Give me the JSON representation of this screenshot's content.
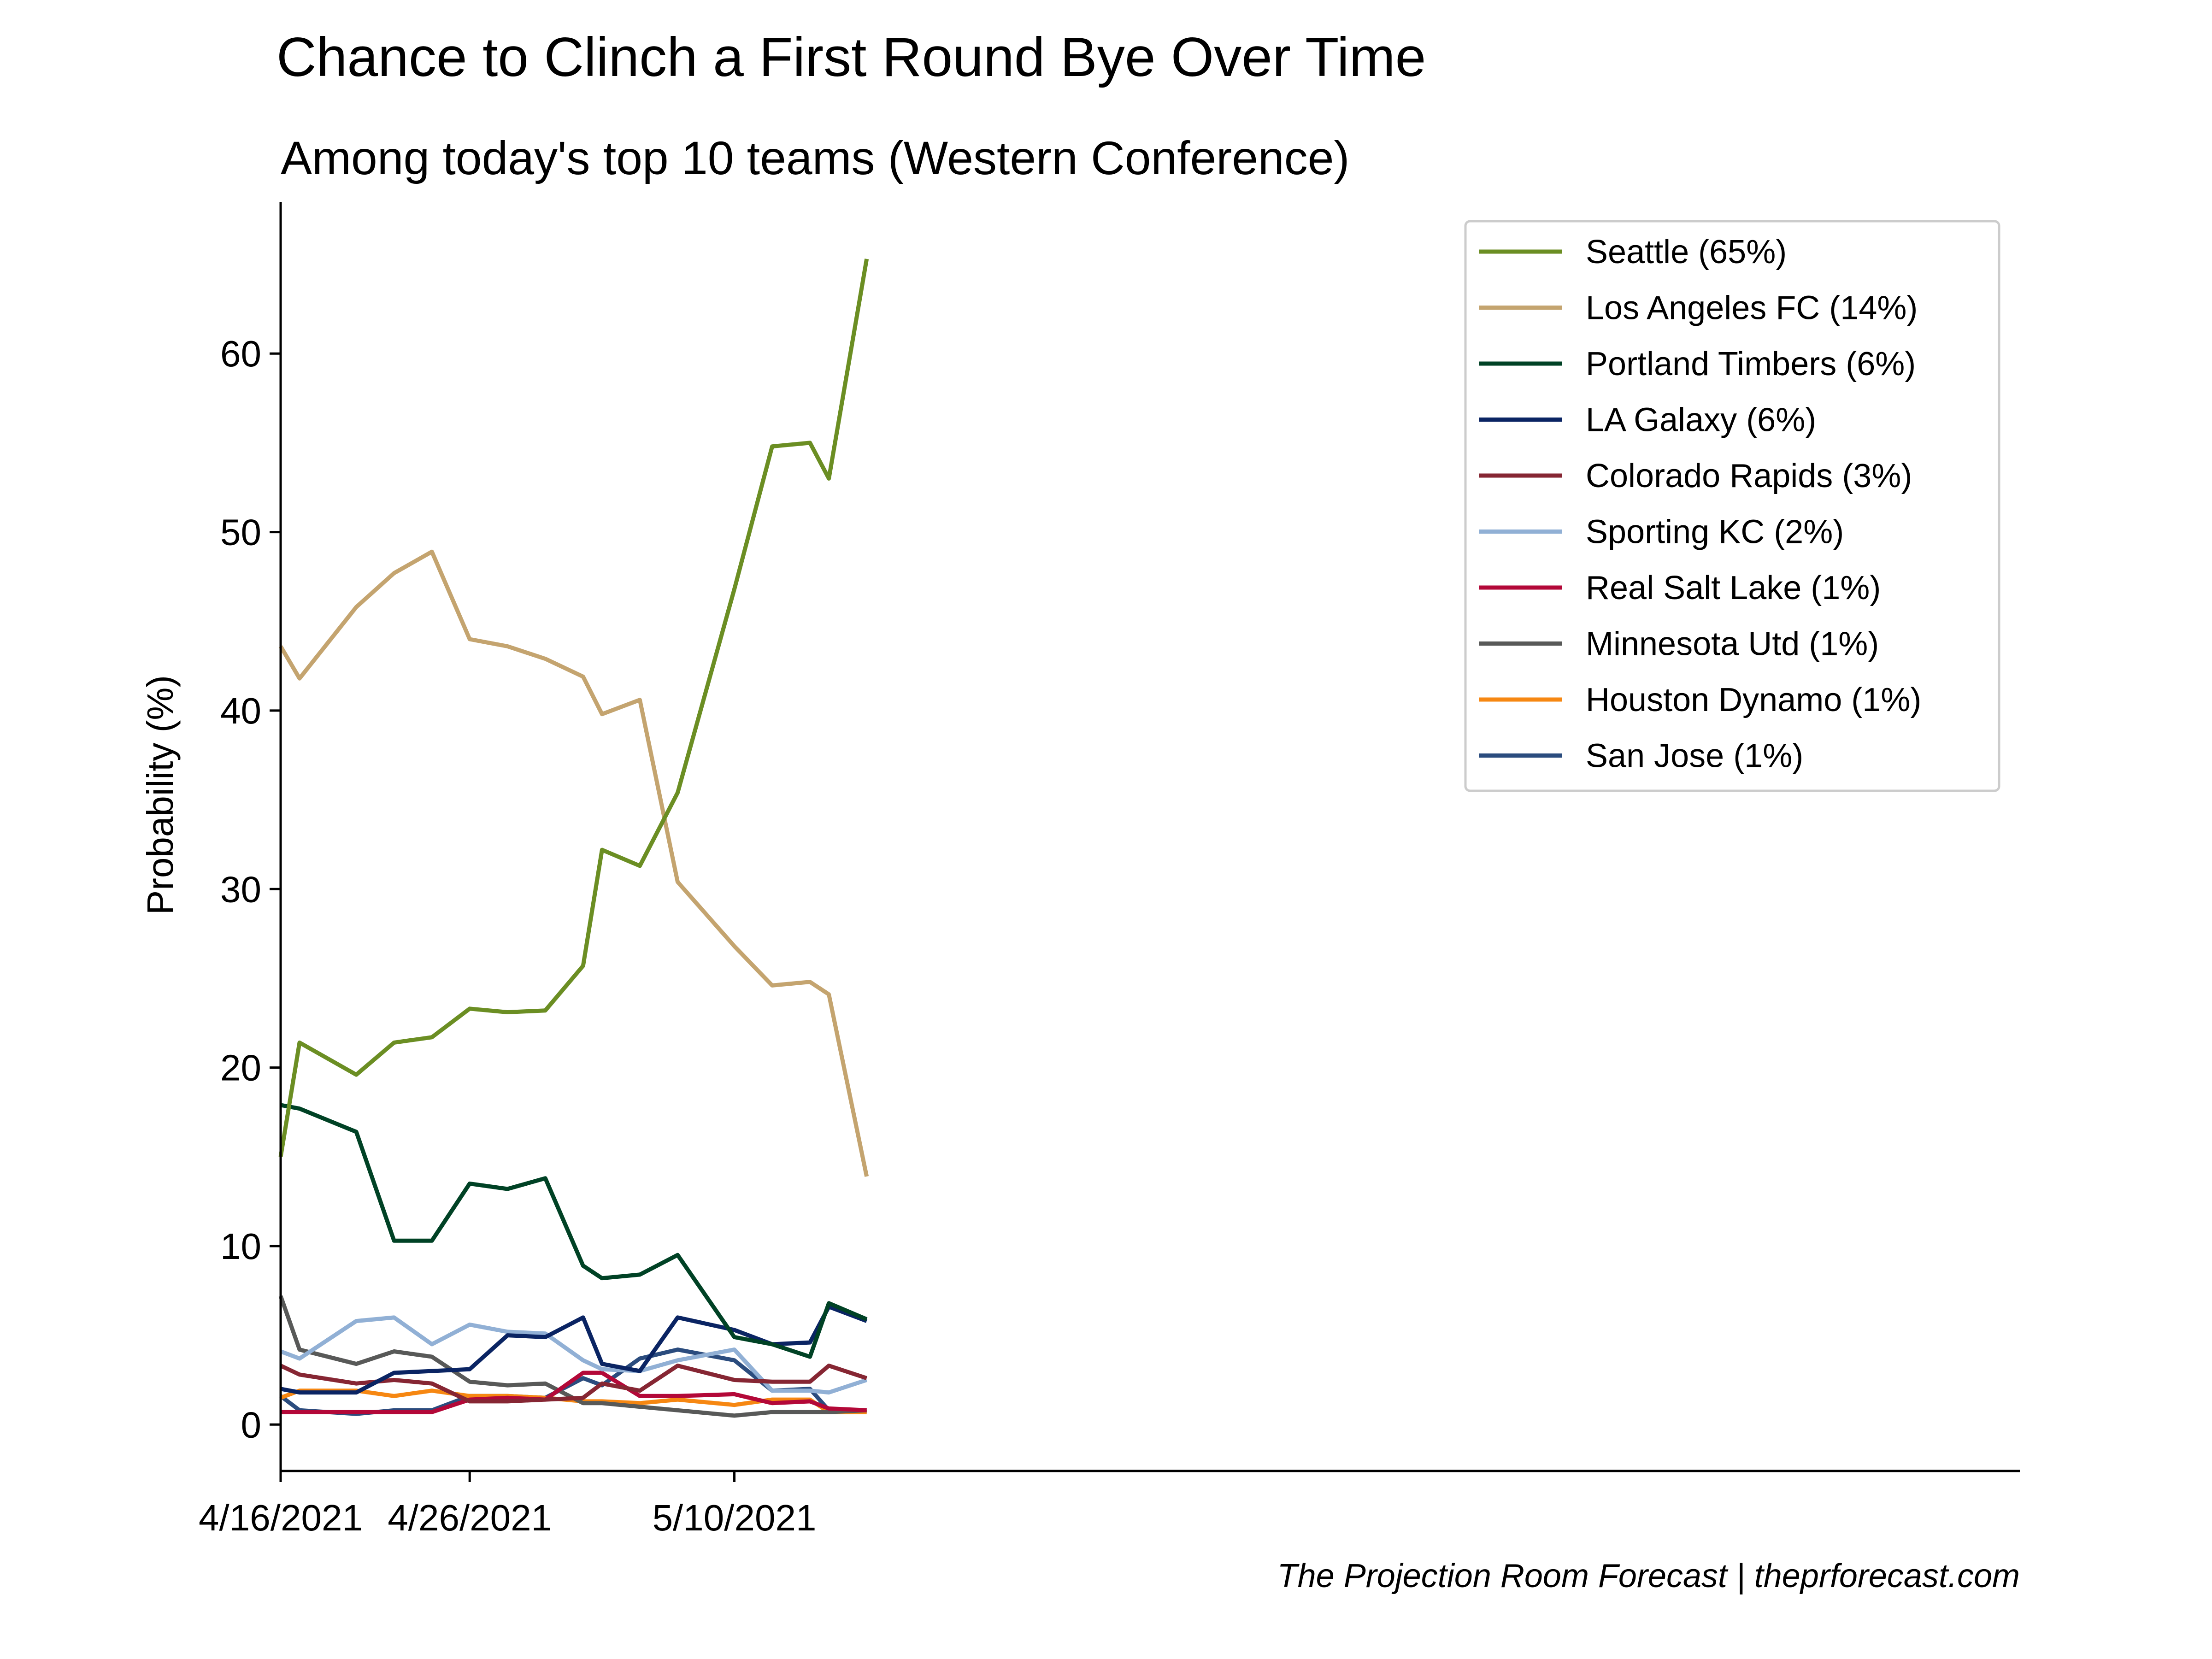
{
  "chart_data": {
    "type": "line",
    "title": "Chance to Clinch a First Round Bye Over Time",
    "subtitle": "Among today's top 10 teams (Western Conference)",
    "xlabel": "",
    "ylabel": "Probability (%)",
    "x_ticks": [
      "4/16/2021",
      "4/26/2021",
      "5/10/2021"
    ],
    "x_axis": {
      "min": "4/16/2021",
      "max": "7/17/2021"
    },
    "y_ticks": [
      0,
      10,
      20,
      30,
      40,
      50,
      60
    ],
    "ylim": [
      -2.6,
      68.5
    ],
    "grid": false,
    "legend_position": "top-right",
    "x": [
      "4/16/2021",
      "4/17/2021",
      "4/20/2021",
      "4/22/2021",
      "4/24/2021",
      "4/26/2021",
      "4/28/2021",
      "4/30/2021",
      "5/2/2021",
      "5/3/2021",
      "5/5/2021",
      "5/7/2021",
      "5/10/2021",
      "5/12/2021",
      "5/14/2021",
      "5/15/2021",
      "5/17/2021",
      "5/18/2021",
      "5/20/2021",
      "5/21/2021",
      "5/24/2021",
      "5/26/2021"
    ],
    "series": [
      {
        "name": "Seattle (65%)",
        "color": "#6b8e23",
        "values": [
          15.0,
          21.4,
          19.6,
          21.4,
          21.7,
          23.3,
          23.1,
          23.2,
          25.7,
          32.2,
          31.3,
          35.4,
          46.8,
          54.8,
          55.0,
          53.0,
          65.3,
          null,
          null,
          null,
          null,
          null
        ]
      },
      {
        "name": "Los Angeles FC (14%)",
        "color": "#c4a46f",
        "values": [
          43.6,
          41.8,
          45.8,
          47.7,
          48.9,
          44.0,
          43.6,
          42.9,
          41.9,
          39.8,
          40.6,
          30.4,
          26.8,
          24.6,
          24.8,
          24.1,
          13.9,
          null,
          null,
          null,
          null,
          null
        ]
      },
      {
        "name": "Portland Timbers (6%)",
        "color": "#004225",
        "values": [
          17.9,
          17.7,
          16.4,
          10.3,
          10.3,
          13.5,
          13.2,
          13.8,
          8.9,
          8.2,
          8.4,
          9.5,
          4.9,
          4.5,
          3.8,
          6.8,
          5.9,
          null,
          null,
          null,
          null,
          null
        ]
      },
      {
        "name": "LA Galaxy (6%)",
        "color": "#0a2463",
        "values": [
          2.0,
          1.8,
          1.8,
          2.9,
          3.0,
          3.1,
          5.0,
          4.9,
          6.0,
          3.4,
          3.0,
          6.0,
          5.3,
          4.5,
          4.6,
          6.6,
          5.8,
          null,
          null,
          null,
          null,
          null
        ]
      },
      {
        "name": "Colorado Rapids (3%)",
        "color": "#862633",
        "values": [
          3.3,
          2.8,
          2.3,
          2.5,
          2.3,
          1.3,
          1.3,
          1.4,
          1.5,
          2.3,
          1.9,
          3.3,
          2.5,
          2.4,
          2.4,
          3.3,
          2.6,
          null,
          null,
          null,
          null,
          null
        ]
      },
      {
        "name": "Sporting KC (2%)",
        "color": "#91b0d5",
        "values": [
          4.1,
          3.7,
          5.8,
          6.0,
          4.5,
          5.6,
          5.2,
          5.1,
          3.6,
          3.1,
          3.0,
          3.6,
          4.2,
          1.9,
          1.9,
          1.8,
          2.5,
          null,
          null,
          null,
          null,
          null
        ]
      },
      {
        "name": "Real Salt Lake (1%)",
        "color": "#b30838",
        "values": [
          0.7,
          0.7,
          0.7,
          0.7,
          0.7,
          1.4,
          1.5,
          1.4,
          2.9,
          2.9,
          1.6,
          1.6,
          1.7,
          1.2,
          1.3,
          0.9,
          0.8,
          null,
          null,
          null,
          null,
          null
        ]
      },
      {
        "name": "Minnesota Utd (1%)",
        "color": "#585958",
        "values": [
          7.2,
          4.2,
          3.4,
          4.1,
          3.8,
          2.4,
          2.2,
          2.3,
          1.2,
          1.2,
          1.0,
          0.8,
          0.5,
          0.7,
          0.7,
          0.7,
          0.8,
          null,
          null,
          null,
          null,
          null
        ]
      },
      {
        "name": "Houston Dynamo (1%)",
        "color": "#f68712",
        "values": [
          1.5,
          1.9,
          1.9,
          1.6,
          1.9,
          1.6,
          1.6,
          1.5,
          1.3,
          1.3,
          1.2,
          1.4,
          1.1,
          1.4,
          1.4,
          0.7,
          0.7,
          null,
          null,
          null,
          null,
          null
        ]
      },
      {
        "name": "San Jose (1%)",
        "color": "#2b4c7e",
        "values": [
          1.6,
          0.8,
          0.6,
          0.8,
          0.8,
          1.6,
          1.6,
          1.5,
          2.6,
          2.2,
          3.7,
          4.2,
          3.6,
          1.9,
          2.0,
          0.8,
          0.7,
          null,
          null,
          null,
          null,
          null
        ]
      }
    ]
  },
  "footer": {
    "source": "The Projection Room Forecast | theprforecast.com"
  }
}
